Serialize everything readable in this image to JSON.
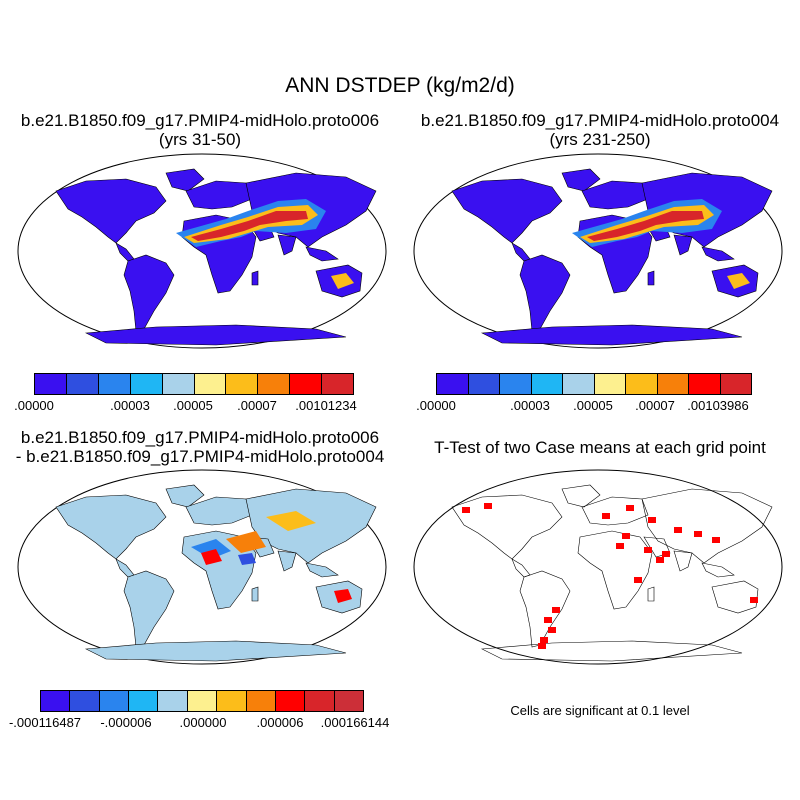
{
  "title": "ANN DSTDEP (kg/m2/d)",
  "colors": {
    "seq": [
      "#3a10f0",
      "#2f4fe0",
      "#2a84ee",
      "#1fb6f4",
      "#a9d2ea",
      "#fdf08f",
      "#fcbd1a",
      "#f7800a",
      "#ff0000",
      "#d8252a"
    ],
    "div": [
      "#3a10f0",
      "#2f4fe0",
      "#2a84ee",
      "#1fb6f4",
      "#a9d2ea",
      "#fdf08f",
      "#fcbd1a",
      "#f7800a",
      "#ff0000",
      "#d8252a",
      "#cc2f38"
    ],
    "land": "#3a10f0",
    "sig": "#ff0000"
  },
  "chart_data": [
    {
      "type": "heatmap",
      "panel": "top-left",
      "title_line1": "b.e21.B1850.f09_g17.PMIP4-midHolo.proto006",
      "title_line2": "(yrs 31-50)",
      "projection": "robinson",
      "colorbar_ticks": [
        ".00000",
        ".00003",
        ".00005",
        ".00007",
        ".00101234"
      ]
    },
    {
      "type": "heatmap",
      "panel": "top-right",
      "title_line1": "b.e21.B1850.f09_g17.PMIP4-midHolo.proto004",
      "title_line2": "(yrs 231-250)",
      "projection": "robinson",
      "colorbar_ticks": [
        ".00000",
        ".00003",
        ".00005",
        ".00007",
        ".00103986"
      ]
    },
    {
      "type": "heatmap",
      "panel": "bottom-left",
      "title_line1": "b.e21.B1850.f09_g17.PMIP4-midHolo.proto006",
      "title_line2": "- b.e21.B1850.f09_g17.PMIP4-midHolo.proto004",
      "projection": "robinson",
      "colorbar_ticks": [
        "-.000116487",
        "-.000006",
        ".000000",
        ".000006",
        ".000166144"
      ]
    },
    {
      "type": "heatmap",
      "panel": "bottom-right",
      "title_line1": "T-Test of two Case means at each grid point",
      "projection": "robinson",
      "note": "Cells are significant at 0.1 level"
    }
  ]
}
